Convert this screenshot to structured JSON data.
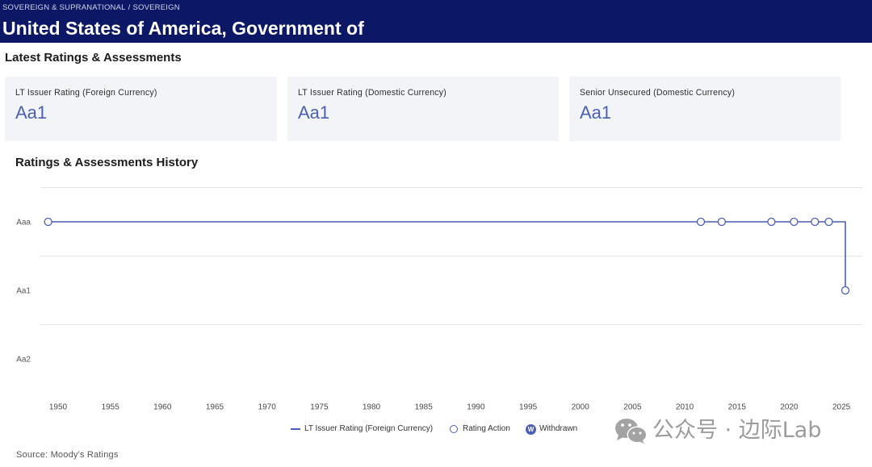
{
  "header": {
    "breadcrumb": [
      "SOVEREIGN & SUPRANATIONAL",
      "SOVEREIGN"
    ],
    "breadcrumb_separator": "/",
    "title": "United States of America, Government of"
  },
  "latest": {
    "heading": "Latest Ratings & Assessments",
    "cards": [
      {
        "label": "LT Issuer Rating (Foreign Currency)",
        "value": "Aa1"
      },
      {
        "label": "LT Issuer Rating (Domestic Currency)",
        "value": "Aa1"
      },
      {
        "label": "Senior Unsecured (Domestic Currency)",
        "value": "Aa1"
      }
    ]
  },
  "chart_data": {
    "type": "line",
    "step": "left",
    "title": "Ratings & Assessments History",
    "xlim": [
      1948.3,
      2027.0
    ],
    "x_ticks": [
      "1950",
      "1955",
      "1960",
      "1965",
      "1970",
      "1975",
      "1980",
      "1985",
      "1990",
      "1995",
      "2000",
      "2005",
      "2010",
      "2015",
      "2020",
      "2025"
    ],
    "y_categories": [
      "Aaa",
      "Aa1",
      "Aa2"
    ],
    "grid": true,
    "legend_position": "bottom",
    "series": [
      {
        "name": "LT Issuer Rating (Foreign Currency)",
        "color": "#4a5fb5",
        "points": [
          {
            "date": "1949-01",
            "rating": "Aaa"
          },
          {
            "date": "2011-07",
            "rating": "Aaa"
          },
          {
            "date": "2013-07",
            "rating": "Aaa"
          },
          {
            "date": "2018-04",
            "rating": "Aaa"
          },
          {
            "date": "2020-06",
            "rating": "Aaa"
          },
          {
            "date": "2022-06",
            "rating": "Aaa"
          },
          {
            "date": "2023-10",
            "rating": "Aaa"
          },
          {
            "date": "2025-05",
            "rating": "Aa1"
          }
        ]
      }
    ],
    "marker_legend": [
      {
        "label": "Rating Action",
        "symbol": "hollow-circle"
      },
      {
        "label": "Withdrawn",
        "symbol": "filled-circle",
        "marker_text": "W"
      }
    ]
  },
  "source": "Source: Moody's Ratings",
  "watermark": {
    "icon": "wechat-icon",
    "text": "公众号 · 边际Lab"
  },
  "colors": {
    "header_bg": "#0c1766",
    "accent": "#4a5fb5",
    "card_bg": "#f3f4f8"
  }
}
